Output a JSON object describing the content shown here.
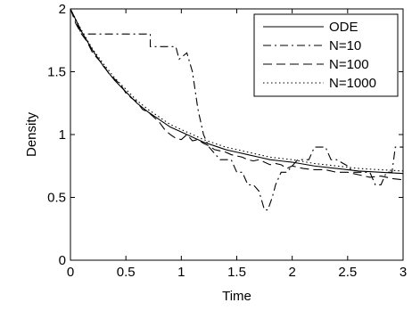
{
  "chart_data": {
    "type": "line",
    "title": "",
    "xlabel": "Time",
    "ylabel": "Density",
    "xlim": [
      0,
      3
    ],
    "ylim": [
      0,
      2
    ],
    "xticks": [
      0,
      0.5,
      1,
      1.5,
      2,
      2.5,
      3
    ],
    "yticks": [
      0,
      0.5,
      1,
      1.5,
      2
    ],
    "xtick_labels": [
      "0",
      "0.5",
      "1",
      "1.5",
      "2",
      "2.5",
      "3"
    ],
    "ytick_labels": [
      "0",
      "0.5",
      "1",
      "1.5",
      "2"
    ],
    "grid": false,
    "legend_position": "top-right",
    "series": [
      {
        "name": "ODE",
        "style": "solid",
        "color": "#000000",
        "x": [
          0,
          0.1,
          0.2,
          0.3,
          0.4,
          0.5,
          0.6,
          0.7,
          0.8,
          0.9,
          1.0,
          1.1,
          1.2,
          1.3,
          1.4,
          1.5,
          1.6,
          1.7,
          1.8,
          1.9,
          2.0,
          2.2,
          2.4,
          2.6,
          2.8,
          3.0
        ],
        "y": [
          2.0,
          1.82,
          1.67,
          1.54,
          1.43,
          1.34,
          1.25,
          1.18,
          1.12,
          1.06,
          1.02,
          0.98,
          0.94,
          0.91,
          0.88,
          0.86,
          0.84,
          0.82,
          0.8,
          0.79,
          0.78,
          0.75,
          0.73,
          0.71,
          0.7,
          0.69
        ]
      },
      {
        "name": "N=10",
        "style": "dashdot",
        "color": "#000000",
        "x": [
          0,
          0.1,
          0.1,
          0.45,
          0.45,
          0.72,
          0.72,
          0.88,
          0.88,
          0.95,
          0.98,
          1.05,
          1.1,
          1.15,
          1.2,
          1.25,
          1.35,
          1.45,
          1.5,
          1.55,
          1.6,
          1.65,
          1.7,
          1.75,
          1.78,
          1.82,
          1.85,
          1.9,
          1.95,
          2.0,
          2.05,
          2.1,
          2.15,
          2.2,
          2.25,
          2.3,
          2.35,
          2.4,
          2.5,
          2.55,
          2.6,
          2.7,
          2.75,
          2.8,
          2.85,
          2.9,
          2.93,
          2.95,
          3.0
        ],
        "y": [
          2.0,
          1.8,
          1.8,
          1.8,
          1.8,
          1.8,
          1.7,
          1.7,
          1.7,
          1.7,
          1.6,
          1.65,
          1.5,
          1.2,
          1.0,
          0.9,
          0.8,
          0.8,
          0.7,
          0.7,
          0.6,
          0.6,
          0.55,
          0.4,
          0.4,
          0.5,
          0.6,
          0.7,
          0.7,
          0.75,
          0.8,
          0.8,
          0.8,
          0.9,
          0.9,
          0.9,
          0.8,
          0.8,
          0.75,
          0.7,
          0.7,
          0.7,
          0.6,
          0.6,
          0.7,
          0.7,
          0.9,
          0.9,
          0.9
        ]
      },
      {
        "name": "N=100",
        "style": "dashed",
        "color": "#000000",
        "x": [
          0,
          0.05,
          0.1,
          0.15,
          0.2,
          0.25,
          0.3,
          0.35,
          0.4,
          0.45,
          0.5,
          0.55,
          0.6,
          0.65,
          0.7,
          0.75,
          0.8,
          0.85,
          0.9,
          0.95,
          1.0,
          1.05,
          1.1,
          1.15,
          1.2,
          1.25,
          1.3,
          1.35,
          1.4,
          1.45,
          1.5,
          1.55,
          1.6,
          1.65,
          1.7,
          1.75,
          1.8,
          1.85,
          1.9,
          1.95,
          2.0,
          2.1,
          2.2,
          2.3,
          2.4,
          2.5,
          2.6,
          2.7,
          2.8,
          2.9,
          3.0
        ],
        "y": [
          2.0,
          1.88,
          1.8,
          1.74,
          1.65,
          1.6,
          1.55,
          1.48,
          1.44,
          1.4,
          1.33,
          1.29,
          1.26,
          1.2,
          1.18,
          1.14,
          1.1,
          1.04,
          1.0,
          0.97,
          0.96,
          1.0,
          0.95,
          0.96,
          0.93,
          0.91,
          0.88,
          0.87,
          0.86,
          0.84,
          0.83,
          0.82,
          0.8,
          0.79,
          0.8,
          0.78,
          0.76,
          0.77,
          0.76,
          0.73,
          0.75,
          0.73,
          0.72,
          0.72,
          0.7,
          0.7,
          0.68,
          0.66,
          0.67,
          0.65,
          0.64
        ]
      },
      {
        "name": "N=1000",
        "style": "dotted",
        "color": "#000000",
        "x": [
          0,
          0.1,
          0.2,
          0.3,
          0.4,
          0.5,
          0.6,
          0.7,
          0.8,
          0.9,
          1.0,
          1.1,
          1.2,
          1.3,
          1.4,
          1.5,
          1.6,
          1.7,
          1.8,
          1.9,
          2.0,
          2.2,
          2.4,
          2.6,
          2.8,
          3.0
        ],
        "y": [
          2.0,
          1.83,
          1.68,
          1.56,
          1.45,
          1.36,
          1.27,
          1.2,
          1.14,
          1.08,
          1.04,
          1.0,
          0.96,
          0.93,
          0.9,
          0.88,
          0.86,
          0.84,
          0.82,
          0.81,
          0.8,
          0.77,
          0.75,
          0.73,
          0.72,
          0.71
        ]
      }
    ]
  }
}
